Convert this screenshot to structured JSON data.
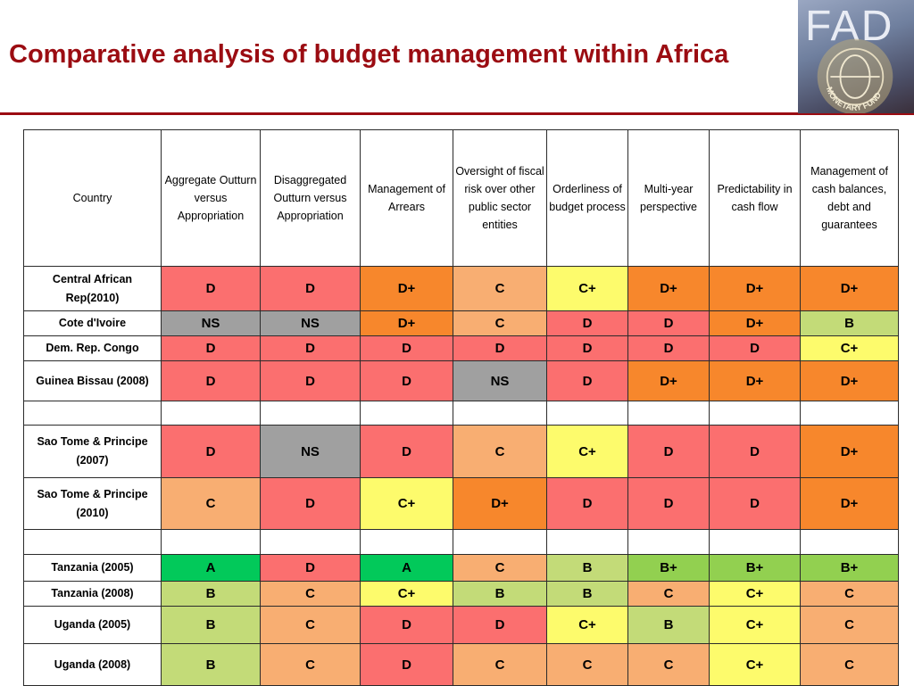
{
  "title": "Comparative analysis of budget management within Africa",
  "logo": {
    "text": "FAD",
    "seal_text": "MONETARY FUND"
  },
  "colors": {
    "title": "#9b0c12",
    "D": "#fb6f6f",
    "NS": "#a0a0a0",
    "D+": "#f7872c",
    "C": "#f8ae72",
    "C+": "#fdfb6c",
    "B": "#c3db78",
    "B+": "#92d050",
    "A": "#02c95a"
  },
  "table": {
    "headers": [
      "Country",
      "Aggregate Outturn versus Appropriation",
      "Disaggregated Outturn versus Appropriation",
      "Management of Arrears",
      "Oversight of fiscal risk over other public sector entities",
      "Orderliness of budget process",
      "Multi-year perspective",
      "Predictability in cash flow",
      "Management of cash balances, debt and guarantees"
    ],
    "rows": [
      {
        "country": "Central African Rep(2010)",
        "grades": [
          "D",
          "D",
          "D+",
          "C",
          "C+",
          "D+",
          "D+",
          "D+"
        ]
      },
      {
        "country": "Cote d'Ivoire",
        "grades": [
          "NS",
          "NS",
          "D+",
          "C",
          "D",
          "D",
          "D+",
          "B"
        ]
      },
      {
        "country": "Dem. Rep. Congo",
        "grades": [
          "D",
          "D",
          "D",
          "D",
          "D",
          "D",
          "D",
          "C+"
        ]
      },
      {
        "country": "Guinea Bissau (2008)",
        "grades": [
          "D",
          "D",
          "D",
          "NS",
          "D",
          "D+",
          "D+",
          "D+"
        ]
      },
      {
        "country": "",
        "grades": [
          "",
          "",
          "",
          "",
          "",
          "",
          "",
          ""
        ]
      },
      {
        "country": "Sao Tome & Principe (2007)",
        "grades": [
          "D",
          "NS",
          "D",
          "C",
          "C+",
          "D",
          "D",
          "D+"
        ]
      },
      {
        "country": "Sao Tome & Principe (2010)",
        "grades": [
          "C",
          "D",
          "C+",
          "D+",
          "D",
          "D",
          "D",
          "D+"
        ]
      },
      {
        "country": "",
        "grades": [
          "",
          "",
          "",
          "",
          "",
          "",
          "",
          ""
        ]
      },
      {
        "country": "Tanzania (2005)",
        "grades": [
          "A",
          "D",
          "A",
          "C",
          "B",
          "B+",
          "B+",
          "B+"
        ]
      },
      {
        "country": "Tanzania (2008)",
        "grades": [
          "B",
          "C",
          "C+",
          "B",
          "B",
          "C",
          "C+",
          "C"
        ]
      },
      {
        "country": "Uganda (2005)",
        "grades": [
          "B",
          "C",
          "D",
          "D",
          "C+",
          "B",
          "C+",
          "C"
        ]
      },
      {
        "country": "Uganda (2008)",
        "grades": [
          "B",
          "C",
          "D",
          "C",
          "C",
          "C",
          "C+",
          "C"
        ]
      }
    ]
  }
}
